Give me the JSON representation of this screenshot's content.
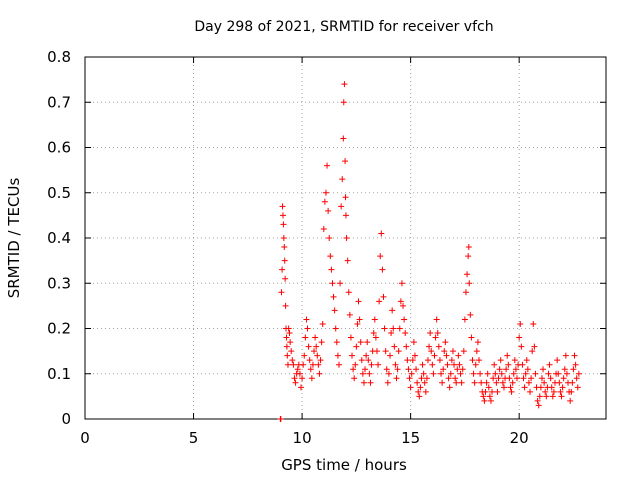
{
  "chart_data": {
    "type": "scatter",
    "title": "Day 298 of 2021, SRMTID for receiver vfch",
    "xlabel": "GPS time / hours",
    "ylabel": "SRMTID / TECUs",
    "xlim": [
      0,
      24
    ],
    "ylim": [
      0,
      0.8
    ],
    "xticks": [
      0,
      5,
      10,
      15,
      20
    ],
    "yticks": [
      0,
      0.1,
      0.2,
      0.3,
      0.4,
      0.5,
      0.6,
      0.7,
      0.8
    ],
    "x_tick_labels": [
      "0",
      "5",
      "10",
      "15",
      "20"
    ],
    "y_tick_labels": [
      "0",
      "0.1",
      "0.2",
      "0.3",
      "0.4",
      "0.5",
      "0.6",
      "0.7",
      "0.8"
    ],
    "grid": true,
    "marker": "plus",
    "color": "#ff0000",
    "series": [
      {
        "name": "SRMTID",
        "points": [
          [
            9.0,
            0.0
          ],
          [
            9.02,
            0.0
          ],
          [
            9.05,
            0.28
          ],
          [
            9.08,
            0.33
          ],
          [
            9.1,
            0.47
          ],
          [
            9.12,
            0.45
          ],
          [
            9.14,
            0.43
          ],
          [
            9.16,
            0.4
          ],
          [
            9.18,
            0.38
          ],
          [
            9.2,
            0.35
          ],
          [
            9.22,
            0.31
          ],
          [
            9.24,
            0.25
          ],
          [
            9.26,
            0.2
          ],
          [
            9.28,
            0.18
          ],
          [
            9.3,
            0.16
          ],
          [
            9.32,
            0.14
          ],
          [
            9.35,
            0.12
          ],
          [
            9.38,
            0.2
          ],
          [
            9.42,
            0.19
          ],
          [
            9.45,
            0.17
          ],
          [
            9.5,
            0.15
          ],
          [
            9.55,
            0.13
          ],
          [
            9.6,
            0.12
          ],
          [
            9.65,
            0.09
          ],
          [
            9.7,
            0.08
          ],
          [
            9.75,
            0.1
          ],
          [
            9.8,
            0.11
          ],
          [
            9.85,
            0.12
          ],
          [
            9.9,
            0.1
          ],
          [
            9.95,
            0.07
          ],
          [
            10.0,
            0.09
          ],
          [
            10.05,
            0.12
          ],
          [
            10.1,
            0.14
          ],
          [
            10.15,
            0.18
          ],
          [
            10.2,
            0.22
          ],
          [
            10.25,
            0.2
          ],
          [
            10.3,
            0.16
          ],
          [
            10.35,
            0.13
          ],
          [
            10.4,
            0.11
          ],
          [
            10.45,
            0.09
          ],
          [
            10.5,
            0.12
          ],
          [
            10.55,
            0.15
          ],
          [
            10.6,
            0.18
          ],
          [
            10.65,
            0.16
          ],
          [
            10.7,
            0.14
          ],
          [
            10.75,
            0.12
          ],
          [
            10.8,
            0.1
          ],
          [
            10.85,
            0.13
          ],
          [
            10.9,
            0.17
          ],
          [
            10.95,
            0.21
          ],
          [
            11.0,
            0.42
          ],
          [
            11.05,
            0.48
          ],
          [
            11.1,
            0.5
          ],
          [
            11.15,
            0.56
          ],
          [
            11.2,
            0.46
          ],
          [
            11.25,
            0.4
          ],
          [
            11.3,
            0.36
          ],
          [
            11.35,
            0.33
          ],
          [
            11.4,
            0.3
          ],
          [
            11.45,
            0.27
          ],
          [
            11.5,
            0.24
          ],
          [
            11.55,
            0.2
          ],
          [
            11.6,
            0.17
          ],
          [
            11.65,
            0.14
          ],
          [
            11.7,
            0.12
          ],
          [
            11.75,
            0.3
          ],
          [
            11.8,
            0.47
          ],
          [
            11.85,
            0.53
          ],
          [
            11.9,
            0.62
          ],
          [
            11.92,
            0.7
          ],
          [
            11.95,
            0.74
          ],
          [
            11.98,
            0.57
          ],
          [
            12.0,
            0.49
          ],
          [
            12.02,
            0.45
          ],
          [
            12.05,
            0.4
          ],
          [
            12.1,
            0.35
          ],
          [
            12.15,
            0.28
          ],
          [
            12.2,
            0.23
          ],
          [
            12.25,
            0.18
          ],
          [
            12.3,
            0.14
          ],
          [
            12.35,
            0.11
          ],
          [
            12.4,
            0.09
          ],
          [
            12.45,
            0.12
          ],
          [
            12.5,
            0.16
          ],
          [
            12.55,
            0.21
          ],
          [
            12.6,
            0.26
          ],
          [
            12.65,
            0.22
          ],
          [
            12.7,
            0.17
          ],
          [
            12.75,
            0.13
          ],
          [
            12.8,
            0.1
          ],
          [
            12.85,
            0.08
          ],
          [
            12.9,
            0.11
          ],
          [
            12.95,
            0.14
          ],
          [
            13.0,
            0.17
          ],
          [
            13.05,
            0.13
          ],
          [
            13.1,
            0.1
          ],
          [
            13.15,
            0.08
          ],
          [
            13.2,
            0.12
          ],
          [
            13.25,
            0.15
          ],
          [
            13.3,
            0.19
          ],
          [
            13.35,
            0.22
          ],
          [
            13.4,
            0.18
          ],
          [
            13.45,
            0.15
          ],
          [
            13.5,
            0.12
          ],
          [
            13.55,
            0.26
          ],
          [
            13.6,
            0.36
          ],
          [
            13.65,
            0.41
          ],
          [
            13.7,
            0.33
          ],
          [
            13.75,
            0.27
          ],
          [
            13.8,
            0.2
          ],
          [
            13.85,
            0.15
          ],
          [
            13.9,
            0.11
          ],
          [
            13.95,
            0.08
          ],
          [
            14.0,
            0.1
          ],
          [
            14.05,
            0.14
          ],
          [
            14.1,
            0.19
          ],
          [
            14.15,
            0.24
          ],
          [
            14.2,
            0.2
          ],
          [
            14.25,
            0.16
          ],
          [
            14.3,
            0.12
          ],
          [
            14.35,
            0.09
          ],
          [
            14.4,
            0.11
          ],
          [
            14.45,
            0.15
          ],
          [
            14.5,
            0.2
          ],
          [
            14.55,
            0.26
          ],
          [
            14.6,
            0.3
          ],
          [
            14.65,
            0.25
          ],
          [
            14.7,
            0.22
          ],
          [
            14.75,
            0.19
          ],
          [
            14.8,
            0.16
          ],
          [
            14.85,
            0.13
          ],
          [
            14.9,
            0.11
          ],
          [
            14.95,
            0.09
          ],
          [
            15.0,
            0.07
          ],
          [
            15.05,
            0.1
          ],
          [
            15.1,
            0.13
          ],
          [
            15.15,
            0.17
          ],
          [
            15.2,
            0.14
          ],
          [
            15.25,
            0.11
          ],
          [
            15.3,
            0.08
          ],
          [
            15.35,
            0.06
          ],
          [
            15.4,
            0.05
          ],
          [
            15.45,
            0.07
          ],
          [
            15.5,
            0.09
          ],
          [
            15.55,
            0.12
          ],
          [
            15.6,
            0.1
          ],
          [
            15.65,
            0.08
          ],
          [
            15.7,
            0.06
          ],
          [
            15.75,
            0.09
          ],
          [
            15.8,
            0.13
          ],
          [
            15.85,
            0.16
          ],
          [
            15.9,
            0.19
          ],
          [
            15.95,
            0.15
          ],
          [
            16.0,
            0.12
          ],
          [
            16.05,
            0.1
          ],
          [
            16.1,
            0.14
          ],
          [
            16.15,
            0.18
          ],
          [
            16.2,
            0.22
          ],
          [
            16.25,
            0.19
          ],
          [
            16.3,
            0.16
          ],
          [
            16.35,
            0.13
          ],
          [
            16.4,
            0.1
          ],
          [
            16.45,
            0.08
          ],
          [
            16.5,
            0.11
          ],
          [
            16.55,
            0.15
          ],
          [
            16.6,
            0.17
          ],
          [
            16.65,
            0.14
          ],
          [
            16.7,
            0.12
          ],
          [
            16.75,
            0.09
          ],
          [
            16.8,
            0.07
          ],
          [
            16.85,
            0.1
          ],
          [
            16.9,
            0.13
          ],
          [
            16.95,
            0.15
          ],
          [
            17.0,
            0.12
          ],
          [
            17.05,
            0.09
          ],
          [
            17.1,
            0.08
          ],
          [
            17.15,
            0.11
          ],
          [
            17.2,
            0.14
          ],
          [
            17.25,
            0.12
          ],
          [
            17.3,
            0.1
          ],
          [
            17.35,
            0.08
          ],
          [
            17.4,
            0.11
          ],
          [
            17.45,
            0.15
          ],
          [
            17.5,
            0.22
          ],
          [
            17.55,
            0.28
          ],
          [
            17.6,
            0.32
          ],
          [
            17.65,
            0.36
          ],
          [
            17.68,
            0.38
          ],
          [
            17.7,
            0.3
          ],
          [
            17.75,
            0.23
          ],
          [
            17.8,
            0.18
          ],
          [
            17.85,
            0.13
          ],
          [
            17.9,
            0.1
          ],
          [
            17.95,
            0.08
          ],
          [
            18.0,
            0.12
          ],
          [
            18.05,
            0.15
          ],
          [
            18.1,
            0.17
          ],
          [
            18.15,
            0.13
          ],
          [
            18.2,
            0.1
          ],
          [
            18.25,
            0.08
          ],
          [
            18.3,
            0.06
          ],
          [
            18.35,
            0.05
          ],
          [
            18.4,
            0.04
          ],
          [
            18.45,
            0.06
          ],
          [
            18.5,
            0.08
          ],
          [
            18.55,
            0.1
          ],
          [
            18.6,
            0.07
          ],
          [
            18.65,
            0.05
          ],
          [
            18.7,
            0.04
          ],
          [
            18.75,
            0.06
          ],
          [
            18.8,
            0.09
          ],
          [
            18.85,
            0.12
          ],
          [
            18.9,
            0.1
          ],
          [
            18.95,
            0.08
          ],
          [
            19.0,
            0.06
          ],
          [
            19.05,
            0.09
          ],
          [
            19.1,
            0.11
          ],
          [
            19.15,
            0.13
          ],
          [
            19.2,
            0.1
          ],
          [
            19.25,
            0.08
          ],
          [
            19.3,
            0.07
          ],
          [
            19.35,
            0.09
          ],
          [
            19.4,
            0.11
          ],
          [
            19.45,
            0.14
          ],
          [
            19.5,
            0.12
          ],
          [
            19.55,
            0.09
          ],
          [
            19.6,
            0.07
          ],
          [
            19.65,
            0.06
          ],
          [
            19.7,
            0.08
          ],
          [
            19.75,
            0.1
          ],
          [
            19.8,
            0.13
          ],
          [
            19.85,
            0.11
          ],
          [
            19.9,
            0.09
          ],
          [
            19.95,
            0.12
          ],
          [
            20.0,
            0.18
          ],
          [
            20.05,
            0.21
          ],
          [
            20.1,
            0.16
          ],
          [
            20.15,
            0.12
          ],
          [
            20.2,
            0.09
          ],
          [
            20.25,
            0.07
          ],
          [
            20.3,
            0.1
          ],
          [
            20.35,
            0.13
          ],
          [
            20.4,
            0.11
          ],
          [
            20.45,
            0.08
          ],
          [
            20.5,
            0.06
          ],
          [
            20.55,
            0.09
          ],
          [
            20.6,
            0.15
          ],
          [
            20.65,
            0.21
          ],
          [
            20.7,
            0.16
          ],
          [
            20.75,
            0.1
          ],
          [
            20.8,
            0.07
          ],
          [
            20.85,
            0.04
          ],
          [
            20.9,
            0.03
          ],
          [
            20.95,
            0.05
          ],
          [
            21.0,
            0.07
          ],
          [
            21.05,
            0.09
          ],
          [
            21.1,
            0.11
          ],
          [
            21.15,
            0.08
          ],
          [
            21.2,
            0.06
          ],
          [
            21.25,
            0.05
          ],
          [
            21.3,
            0.07
          ],
          [
            21.35,
            0.1
          ],
          [
            21.4,
            0.12
          ],
          [
            21.45,
            0.09
          ],
          [
            21.5,
            0.07
          ],
          [
            21.55,
            0.05
          ],
          [
            21.6,
            0.06
          ],
          [
            21.65,
            0.08
          ],
          [
            21.7,
            0.1
          ],
          [
            21.75,
            0.13
          ],
          [
            21.8,
            0.1
          ],
          [
            21.85,
            0.08
          ],
          [
            21.9,
            0.06
          ],
          [
            21.95,
            0.05
          ],
          [
            22.0,
            0.07
          ],
          [
            22.05,
            0.09
          ],
          [
            22.1,
            0.11
          ],
          [
            22.15,
            0.14
          ],
          [
            22.2,
            0.1
          ],
          [
            22.25,
            0.08
          ],
          [
            22.3,
            0.06
          ],
          [
            22.35,
            0.04
          ],
          [
            22.4,
            0.06
          ],
          [
            22.45,
            0.08
          ],
          [
            22.5,
            0.11
          ],
          [
            22.55,
            0.14
          ],
          [
            22.6,
            0.12
          ],
          [
            22.65,
            0.09
          ],
          [
            22.7,
            0.07
          ],
          [
            22.75,
            0.1
          ]
        ]
      }
    ]
  }
}
